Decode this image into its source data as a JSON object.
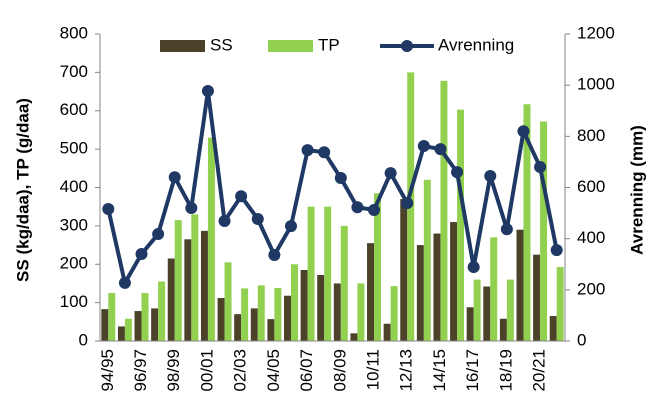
{
  "chart_data": {
    "type": "bar_line",
    "y_label": "SS (kg/daa), TP (g/daa)",
    "y2_label": "Avrenning (mm)",
    "categories": [
      "94/95",
      null,
      "96/97",
      null,
      "98/99",
      null,
      "00/01",
      null,
      "02/03",
      null,
      "04/05",
      null,
      "06/07",
      null,
      "08/09",
      null,
      "10/11",
      null,
      "12/13",
      null,
      "14/15",
      null,
      "16/17",
      null,
      "18/19",
      null,
      "20/21",
      null
    ],
    "series": [
      {
        "name": "SS",
        "type": "bar",
        "color": "#4b4229",
        "values": [
          83,
          38,
          78,
          85,
          215,
          265,
          287,
          112,
          70,
          85,
          57,
          118,
          185,
          172,
          150,
          20,
          255,
          45,
          370,
          250,
          280,
          310,
          88,
          142,
          58,
          290,
          225,
          65
        ]
      },
      {
        "name": "TP",
        "type": "bar",
        "color": "#92d050",
        "values": [
          125,
          58,
          125,
          155,
          315,
          330,
          530,
          205,
          137,
          145,
          138,
          200,
          350,
          350,
          300,
          150,
          385,
          143,
          700,
          420,
          678,
          603,
          160,
          270,
          160,
          617,
          572,
          193
        ]
      },
      {
        "name": "Avrenning",
        "type": "line",
        "axis": "y2",
        "color": "#1f3864",
        "values": [
          516,
          227,
          340,
          418,
          640,
          520,
          977,
          469,
          566,
          477,
          336,
          449,
          746,
          738,
          637,
          523,
          512,
          656,
          539,
          762,
          750,
          660,
          289,
          645,
          437,
          820,
          680,
          355
        ]
      }
    ],
    "ylim": [
      0,
      800
    ],
    "yticks": [
      0,
      100,
      200,
      300,
      400,
      500,
      600,
      700,
      800
    ],
    "y2lim": [
      0,
      1200
    ],
    "y2ticks": [
      0,
      200,
      400,
      600,
      800,
      1000,
      1200
    ],
    "legend": "top"
  }
}
